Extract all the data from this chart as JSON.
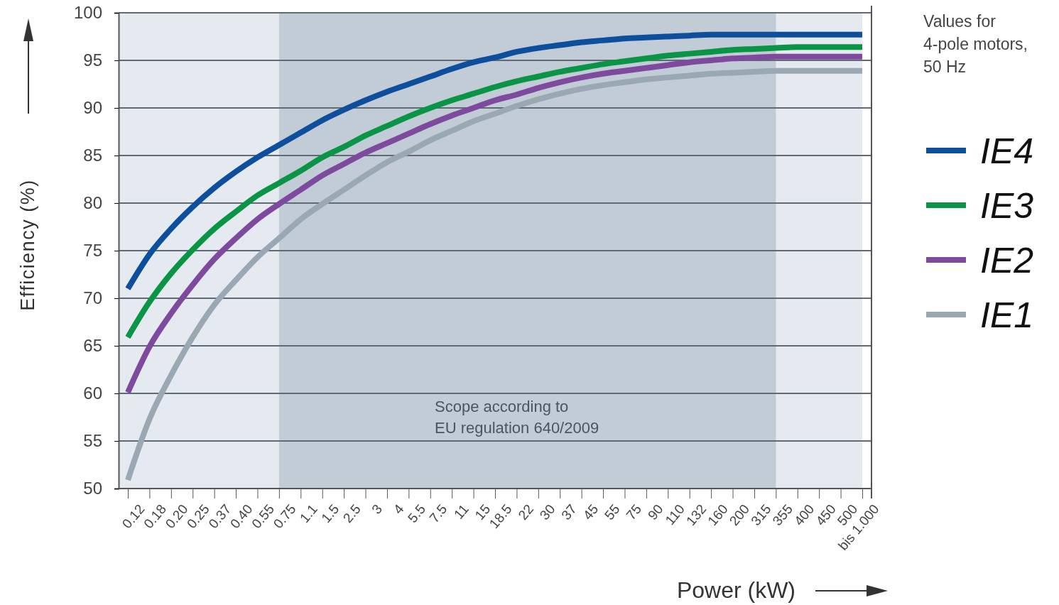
{
  "chart_data": {
    "type": "line",
    "xlabel": "Power (kW)",
    "ylabel": "Efficiency (%)",
    "legend_title": "Values for 4-pole motors, 50 Hz",
    "categories": [
      "0.12",
      "0.18",
      "0.20",
      "0.25",
      "0.37",
      "0.40",
      "0.55",
      "0.75",
      "1.1",
      "1.5",
      "2.5",
      "3",
      "4",
      "5.5",
      "7.5",
      "11",
      "15",
      "18.5",
      "22",
      "30",
      "37",
      "45",
      "55",
      "75",
      "90",
      "110",
      "132",
      "160",
      "200",
      "315",
      "355",
      "400",
      "450",
      "500",
      "bis 1.000"
    ],
    "series": [
      {
        "name": "IE4",
        "color": "#0d4f9c",
        "values": [
          71,
          74.6,
          77.3,
          79.6,
          81.6,
          83.3,
          84.8,
          86.1,
          87.4,
          88.7,
          89.8,
          90.8,
          91.7,
          92.5,
          93.3,
          94.1,
          94.8,
          95.3,
          95.9,
          96.3,
          96.6,
          96.9,
          97.1,
          97.3,
          97.4,
          97.5,
          97.6,
          97.7,
          97.7,
          97.7,
          97.7,
          97.7,
          97.7,
          97.7,
          97.7
        ]
      },
      {
        "name": "IE3",
        "color": "#0a9446",
        "values": [
          65.9,
          69.6,
          72.6,
          75.1,
          77.3,
          79.1,
          80.8,
          82.1,
          83.4,
          84.8,
          85.9,
          87.1,
          88.1,
          89.1,
          90,
          90.8,
          91.5,
          92.2,
          92.8,
          93.3,
          93.8,
          94.2,
          94.6,
          94.9,
          95.2,
          95.5,
          95.7,
          95.9,
          96.1,
          96.2,
          96.3,
          96.4,
          96.4,
          96.4,
          96.4
        ]
      },
      {
        "name": "IE2",
        "color": "#7e4a9e",
        "values": [
          60.1,
          64.9,
          68.4,
          71.4,
          74.1,
          76.3,
          78.3,
          79.9,
          81.4,
          82.9,
          84.1,
          85.3,
          86.3,
          87.3,
          88.3,
          89.2,
          90,
          90.8,
          91.4,
          92.1,
          92.7,
          93.2,
          93.6,
          93.9,
          94.2,
          94.5,
          94.8,
          95,
          95.2,
          95.3,
          95.4,
          95.4,
          95.4,
          95.4,
          95.4
        ]
      },
      {
        "name": "IE1",
        "color": "#9aa8b3",
        "values": [
          50.9,
          57.3,
          61.9,
          65.9,
          69.3,
          71.9,
          74.3,
          76.3,
          78.3,
          79.9,
          81.4,
          82.9,
          84.3,
          85.4,
          86.6,
          87.6,
          88.6,
          89.4,
          90.2,
          90.9,
          91.5,
          92,
          92.4,
          92.7,
          93,
          93.2,
          93.4,
          93.6,
          93.7,
          93.8,
          93.9,
          93.9,
          93.9,
          93.9,
          93.9
        ]
      }
    ],
    "ylim": [
      50,
      100
    ],
    "yticks": [
      50,
      55,
      60,
      65,
      70,
      75,
      80,
      85,
      90,
      95,
      100
    ],
    "grid": "y",
    "legend": "right",
    "line_style": "solid",
    "bands": [
      {
        "axis": "x",
        "from": "0.75",
        "to": "355",
        "label": "Scope according to\nEU regulation 640/2009",
        "color": "#c1ccd6"
      }
    ]
  }
}
